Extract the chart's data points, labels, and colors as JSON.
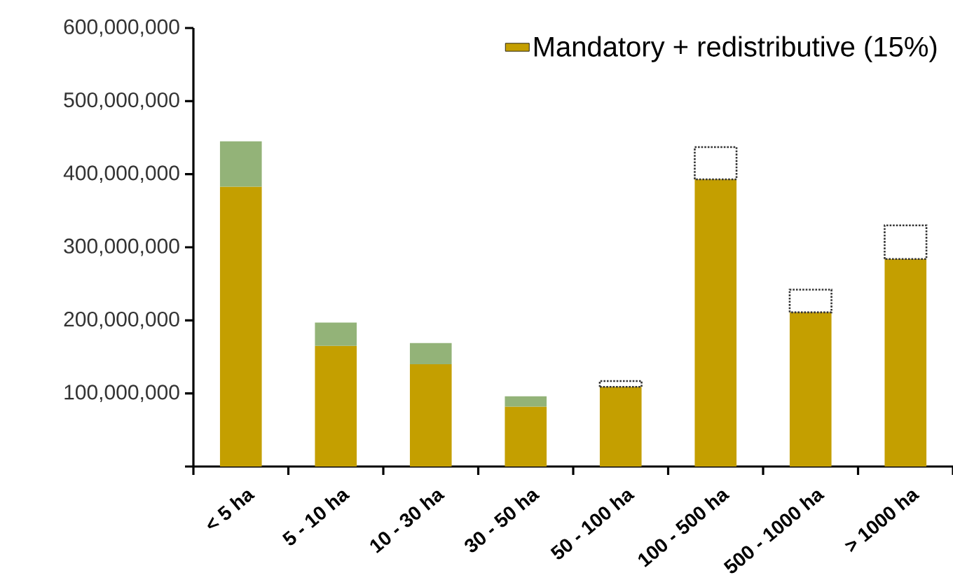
{
  "chart_data": {
    "type": "bar",
    "stacked": true,
    "categories": [
      "< 5 ha",
      "5 - 10 ha",
      "10 - 30 ha",
      "30 - 50 ha",
      "50 - 100 ha",
      "100 - 500 ha",
      "500 - 1000 ha",
      "> 1000 ha"
    ],
    "series": [
      {
        "name": "Mandatory + redistributive (15%)",
        "color": "#c49f00",
        "values": [
          383000000,
          165000000,
          140000000,
          82000000,
          109000000,
          393000000,
          211000000,
          284000000
        ]
      },
      {
        "color": "#93b378",
        "values": [
          62000000,
          32000000,
          29000000,
          14000000,
          null,
          null,
          null,
          null
        ]
      },
      {
        "color": "#333333",
        "line_style": "dotted",
        "values": [
          null,
          null,
          null,
          null,
          8000000,
          44000000,
          31000000,
          46000000
        ]
      }
    ],
    "ylim": [
      0,
      600000000
    ],
    "yticks": [
      {
        "value": 0,
        "label": null
      },
      {
        "value": 100000000,
        "label": "100,000,000"
      },
      {
        "value": 200000000,
        "label": "200,000,000"
      },
      {
        "value": 300000000,
        "label": "300,000,000"
      },
      {
        "value": 400000000,
        "label": "400,000,000"
      },
      {
        "value": 500000000,
        "label": "500,000,000"
      },
      {
        "value": 600000000,
        "label": "600,000,000"
      }
    ],
    "legend": "top right"
  }
}
